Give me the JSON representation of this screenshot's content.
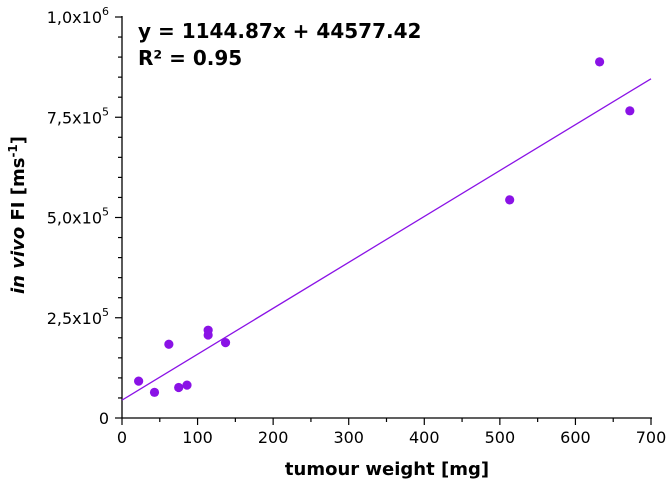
{
  "chart_data": {
    "type": "scatter",
    "title": "",
    "xlabel": "tumour weight [mg]",
    "ylabel": {
      "italic": "in vivo",
      "plain": " FI [ms",
      "superscript": "-1",
      "close": "]"
    },
    "xlim": [
      0,
      700
    ],
    "ylim": [
      0,
      1000000
    ],
    "x_ticks": [
      {
        "value": 0,
        "label": "0"
      },
      {
        "value": 100,
        "label": "100"
      },
      {
        "value": 200,
        "label": "200"
      },
      {
        "value": 300,
        "label": "300"
      },
      {
        "value": 400,
        "label": "400"
      },
      {
        "value": 500,
        "label": "500"
      },
      {
        "value": 600,
        "label": "600"
      },
      {
        "value": 700,
        "label": "700"
      }
    ],
    "y_ticks": [
      {
        "value": 0,
        "mantissa": "0",
        "exponent": ""
      },
      {
        "value": 250000,
        "mantissa": "2,5x10",
        "exponent": "5"
      },
      {
        "value": 500000,
        "mantissa": "5,0x10",
        "exponent": "5"
      },
      {
        "value": 750000,
        "mantissa": "7,5x10",
        "exponent": "5"
      },
      {
        "value": 1000000,
        "mantissa": "1,0x10",
        "exponent": "6"
      }
    ],
    "grid": false,
    "marker_color": "#8a12e6",
    "line_color": "#8a12e6",
    "series": [
      {
        "points": [
          {
            "x": 22,
            "y": 92000
          },
          {
            "x": 43,
            "y": 64000
          },
          {
            "x": 62,
            "y": 184000
          },
          {
            "x": 75,
            "y": 76000
          },
          {
            "x": 86,
            "y": 82000
          },
          {
            "x": 114,
            "y": 219000
          },
          {
            "x": 114,
            "y": 207000
          },
          {
            "x": 137,
            "y": 188000
          },
          {
            "x": 513,
            "y": 544000
          },
          {
            "x": 632,
            "y": 888000
          },
          {
            "x": 672,
            "y": 766000
          }
        ]
      }
    ],
    "fit": {
      "slope": 1144.87,
      "intercept": 44577.42,
      "x_range": [
        0,
        700
      ],
      "equation": "y = 1144.87x + 44577.42",
      "r_squared": "R² = 0.95"
    }
  }
}
